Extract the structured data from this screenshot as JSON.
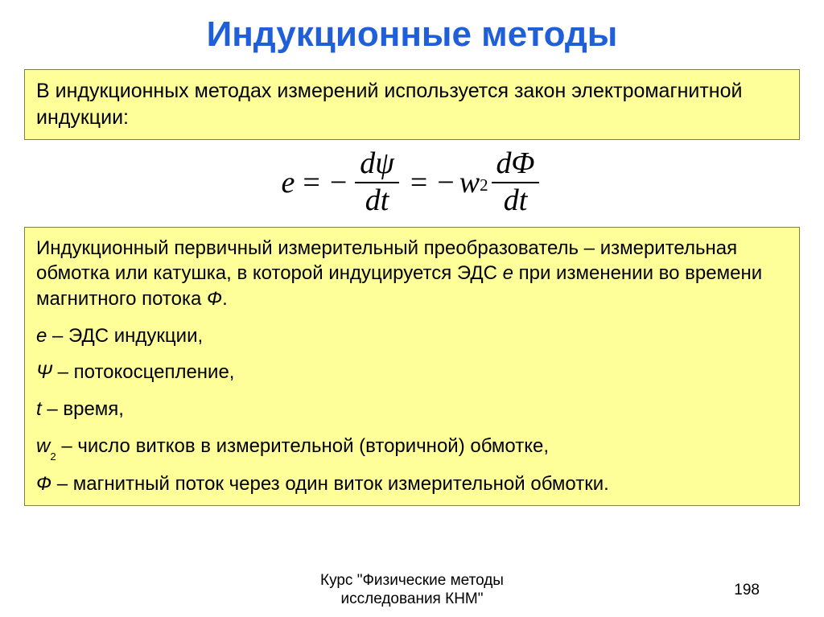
{
  "colors": {
    "title": "#205fda",
    "box_bg": "#ffff99",
    "box_border": "#808040",
    "text": "#000000"
  },
  "title": "Индукционные методы",
  "intro": "В индукционных методах измерений используется закон электромагнитной индукции:",
  "formula": {
    "lhs": "e",
    "frac1_num_d": "d",
    "frac1_num_var": "ψ",
    "frac1_den_d": "d",
    "frac1_den_var": "t",
    "coef_w": "w",
    "coef_sub": "2",
    "frac2_num_d": "d",
    "frac2_num_var": "Φ",
    "frac2_den_d": "d",
    "frac2_den_var": "t"
  },
  "body": {
    "p1_a": "Индукционный первичный измерительный преобразователь – измерительная обмотка или катушка, в которой индуцируется ЭДС ",
    "p1_e": "е",
    "p1_b": " при изменении во времени магнитного потока ",
    "p1_phi": "Ф",
    "p1_c": ".",
    "l1_sym": "е",
    "l1_txt": " – ЭДС индукции,",
    "l2_sym": "Ψ",
    "l2_txt": " – потокосцепление,",
    "l3_sym": "t",
    "l3_txt": " – время,",
    "l4_sym": "w",
    "l4_sub": "2",
    "l4_txt": " – число витков в измерительной (вторичной) обмотке,",
    "l5_sym": "Ф",
    "l5_txt": " – магнитный поток через один виток измерительной обмотки."
  },
  "footer": {
    "line1": "Курс \"Физические методы",
    "line2": "исследования КНМ\"",
    "page": "198"
  }
}
